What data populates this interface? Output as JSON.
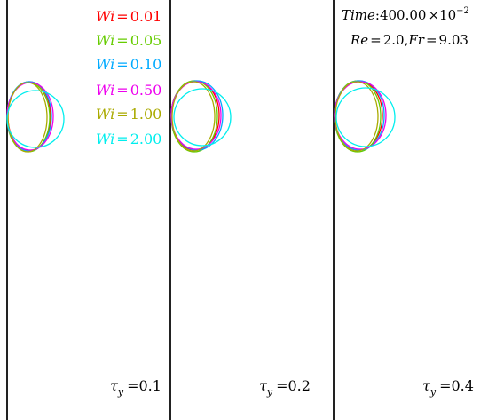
{
  "legend": {
    "entries": [
      {
        "symbol": "Wi",
        "value": "0.01",
        "color": "#ff0000"
      },
      {
        "symbol": "Wi",
        "value": "0.05",
        "color": "#66cc00"
      },
      {
        "symbol": "Wi",
        "value": "0.10",
        "color": "#00aaff"
      },
      {
        "symbol": "Wi",
        "value": "0.50",
        "color": "#ee00ee"
      },
      {
        "symbol": "Wi",
        "value": "1.00",
        "color": "#aaaa00"
      },
      {
        "symbol": "Wi",
        "value": "2.00",
        "color": "#00eeee"
      }
    ],
    "equals": "="
  },
  "info": {
    "time_label": "Time",
    "time_sep": ":",
    "time_value": "400.00",
    "time_times": "×10",
    "time_exponent": "−2",
    "line2": {
      "re_label": "Re",
      "re_value": "2.0",
      "fr_label": "Fr",
      "fr_value": "9.03",
      "equals": "=",
      "comma": ","
    }
  },
  "panels": [
    {
      "tau_symbol": "τ",
      "tau_sub": "y",
      "equals": "=",
      "value": "0.1"
    },
    {
      "tau_symbol": "τ",
      "tau_sub": "y",
      "equals": "=",
      "value": "0.2"
    },
    {
      "tau_symbol": "τ",
      "tau_sub": "y",
      "equals": "=",
      "value": "0.4"
    }
  ],
  "colors": {
    "wall": "#222222",
    "text": "#000000",
    "background": "#ffffff"
  }
}
